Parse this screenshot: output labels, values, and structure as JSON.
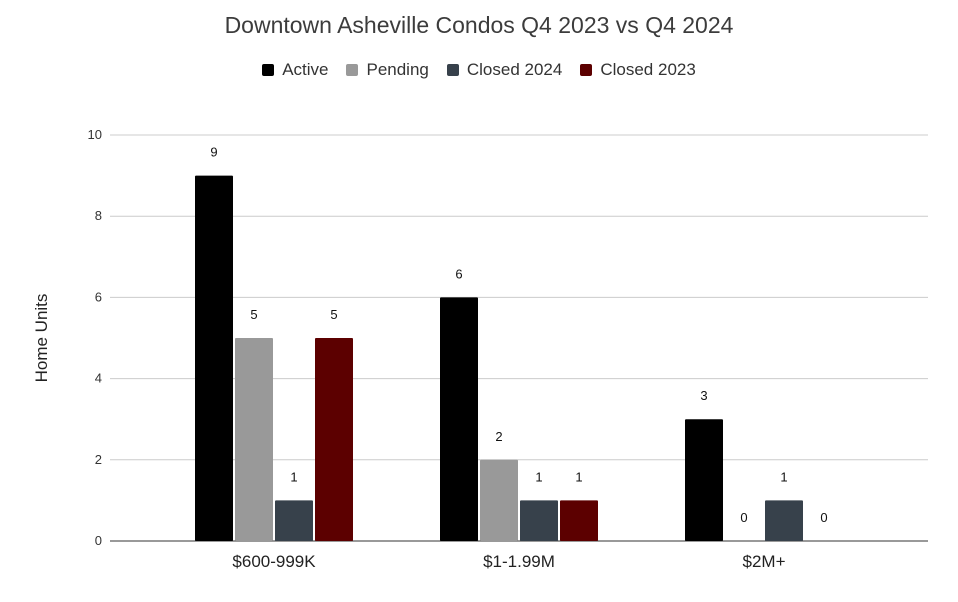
{
  "chart_data": {
    "type": "bar",
    "title": "Downtown Asheville Condos Q4 2023 vs Q4 2024",
    "xlabel": "",
    "ylabel": "Home Units",
    "ylim": [
      0,
      10
    ],
    "yticks": [
      0,
      2,
      4,
      6,
      8,
      10
    ],
    "grid": true,
    "legend_position": "top-center",
    "categories": [
      "$600-999K",
      "$1-1.99M",
      "$2M+"
    ],
    "series": [
      {
        "name": "Active",
        "color": "#000000",
        "values": [
          9,
          6,
          3
        ],
        "labels": [
          "9",
          "6",
          "3"
        ]
      },
      {
        "name": "Pending",
        "color": "#999999",
        "values": [
          5,
          2,
          0
        ],
        "labels": [
          "5",
          "2",
          "0"
        ]
      },
      {
        "name": "Closed 2024",
        "color": "#37414b",
        "values": [
          1,
          1,
          1
        ],
        "labels": [
          "1",
          "1",
          "1"
        ]
      },
      {
        "name": "Closed 2023",
        "color": "#5c0000",
        "values": [
          5,
          1,
          0
        ],
        "labels": [
          "5",
          "1",
          "0"
        ]
      }
    ]
  }
}
